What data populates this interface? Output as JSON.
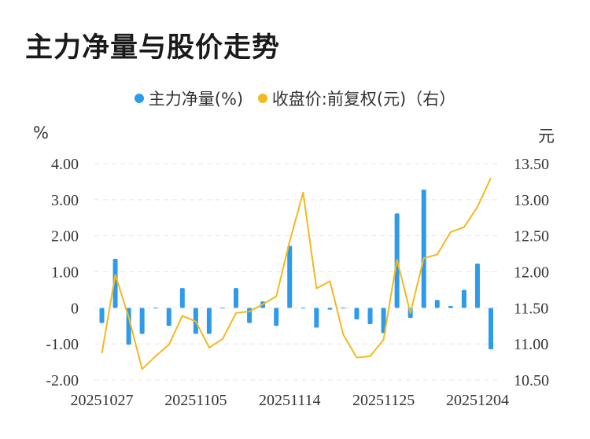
{
  "title": "主力净量与股价走势",
  "legend": {
    "bar_label": "主力净量(%)",
    "line_label": "收盘价:前复权(元)（右）"
  },
  "units": {
    "left": "%",
    "right": "元"
  },
  "colors": {
    "bar": "#2e9bea",
    "line": "#f5b81c",
    "grid": "#e6e6e6",
    "text": "#333333"
  },
  "chart_data": {
    "type": "bar+line",
    "title": "主力净量与股价走势",
    "x_tick_labels": [
      "20251027",
      "20251105",
      "20251114",
      "20251125",
      "20251204"
    ],
    "y_left": {
      "label": "%",
      "ylim": [
        -2,
        4
      ],
      "ticks": [
        "4.00",
        "3.00",
        "2.00",
        "1.00",
        "0",
        "-1.00",
        "-2.00"
      ]
    },
    "y_right": {
      "label": "元",
      "ylim": [
        10.5,
        13.5
      ],
      "ticks": [
        "13.50",
        "13.00",
        "12.50",
        "12.00",
        "11.50",
        "11.00",
        "10.50"
      ]
    },
    "grid": true,
    "legend_position": "top-center",
    "series": [
      {
        "name": "主力净量(%)",
        "type": "bar",
        "axis": "left",
        "values": [
          -0.42,
          1.36,
          -1.02,
          -0.72,
          -0.02,
          -0.5,
          0.55,
          -0.72,
          -0.72,
          -0.02,
          0.55,
          -0.42,
          0.18,
          -0.5,
          1.72,
          0.02,
          -0.55,
          -0.05,
          -0.02,
          -0.32,
          -0.45,
          -0.7,
          2.62,
          -0.28,
          3.28,
          0.22,
          0.05,
          0.5,
          1.23,
          -1.15
        ]
      },
      {
        "name": "收盘价:前复权(元)（右）",
        "type": "line",
        "axis": "right",
        "values": [
          10.87,
          11.96,
          11.37,
          10.65,
          10.83,
          10.99,
          11.39,
          11.31,
          10.95,
          11.07,
          11.43,
          11.45,
          11.55,
          11.66,
          12.42,
          13.1,
          11.77,
          11.87,
          11.13,
          10.81,
          10.83,
          11.06,
          12.17,
          11.43,
          12.19,
          12.24,
          12.55,
          12.62,
          12.9,
          13.3
        ]
      }
    ]
  }
}
